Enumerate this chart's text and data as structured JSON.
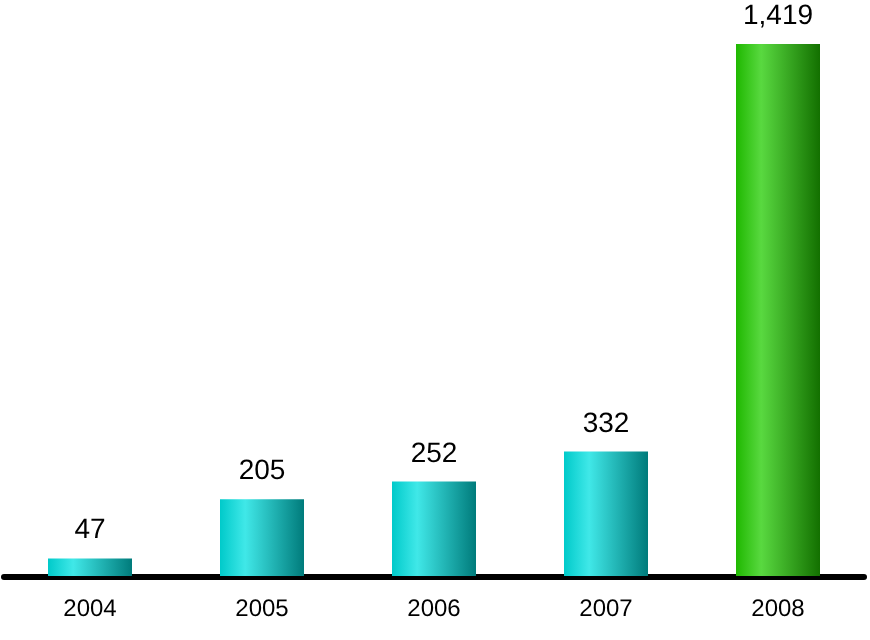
{
  "chart_data": {
    "type": "bar",
    "categories": [
      "2004",
      "2005",
      "2006",
      "2007",
      "2008"
    ],
    "values": [
      47,
      205,
      252,
      332,
      1419
    ],
    "value_labels": [
      "47",
      "205",
      "252",
      "332",
      "1,419"
    ],
    "colors": [
      "#00e0e0",
      "#00e0e0",
      "#00e0e0",
      "#00e0e0",
      "#22cc00"
    ]
  }
}
